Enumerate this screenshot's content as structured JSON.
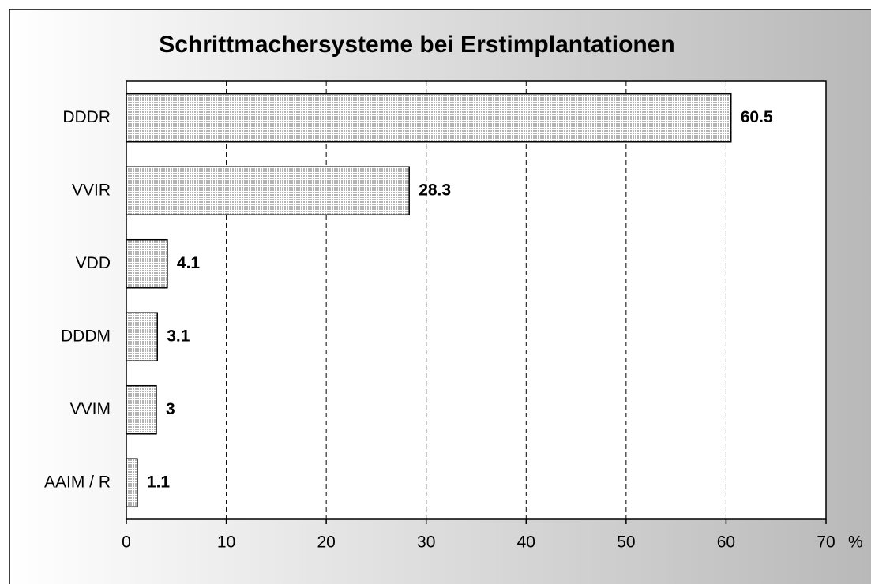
{
  "chart_data": {
    "type": "hbar",
    "title": "Schrittmachersysteme bei Erstimplantationen",
    "categories": [
      "DDDR",
      "VVIR",
      "VDD",
      "DDDM",
      "VVIM",
      "AAIM / R"
    ],
    "values": [
      60.5,
      28.3,
      4.1,
      3.1,
      3,
      1.1
    ],
    "color": "#b4b4b4",
    "xlabel": "%",
    "xlim": [
      0,
      70
    ],
    "xticks": [
      0,
      10,
      20,
      30,
      40,
      50,
      60,
      70
    ],
    "grid": true
  }
}
